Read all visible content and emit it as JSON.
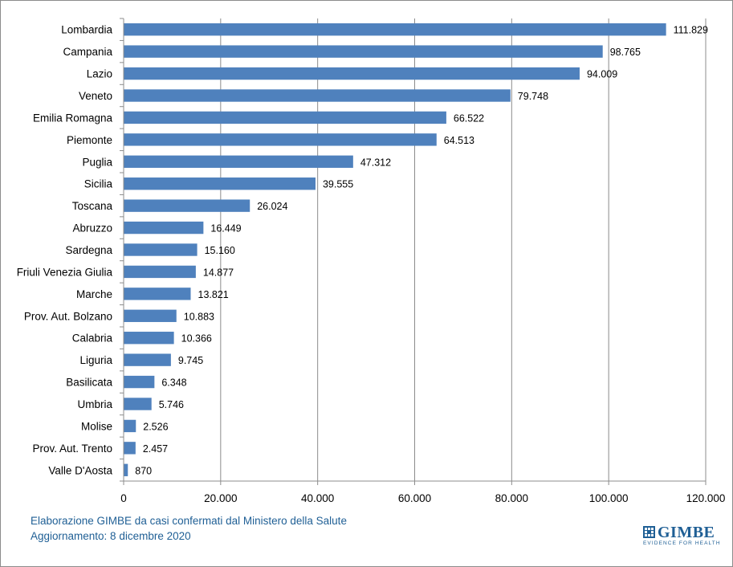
{
  "chart_data": {
    "type": "bar",
    "orientation": "horizontal",
    "categories": [
      "Lombardia",
      "Campania",
      "Lazio",
      "Veneto",
      "Emilia Romagna",
      "Piemonte",
      "Puglia",
      "Sicilia",
      "Toscana",
      "Abruzzo",
      "Sardegna",
      "Friuli Venezia Giulia",
      "Marche",
      "Prov. Aut. Bolzano",
      "Calabria",
      "Liguria",
      "Basilicata",
      "Umbria",
      "Molise",
      "Prov. Aut. Trento",
      "Valle D'Aosta"
    ],
    "values": [
      111829,
      98765,
      94009,
      79748,
      66522,
      64513,
      47312,
      39555,
      26024,
      16449,
      15160,
      14877,
      13821,
      10883,
      10366,
      9745,
      6348,
      5746,
      2526,
      2457,
      870
    ],
    "value_labels": [
      "111.829",
      "98.765",
      "94.009",
      "79.748",
      "66.522",
      "64.513",
      "47.312",
      "39.555",
      "26.024",
      "16.449",
      "15.160",
      "14.877",
      "13.821",
      "10.883",
      "10.366",
      "9.745",
      "6.348",
      "5.746",
      "2.526",
      "2.457",
      "870"
    ],
    "xlim": [
      0,
      120000
    ],
    "x_ticks": [
      0,
      20000,
      40000,
      60000,
      80000,
      100000,
      120000
    ],
    "x_tick_labels": [
      "0",
      "20.000",
      "40.000",
      "60.000",
      "80.000",
      "100.000",
      "120.000"
    ],
    "grid": "vertical",
    "bar_color": "#4f81bd",
    "title": "",
    "xlabel": "",
    "ylabel": ""
  },
  "footer": {
    "source": "Elaborazione GIMBE da casi confermati dal Ministero della Salute",
    "updated": "Aggiornamento: 8 dicembre 2020",
    "text_color": "#1f5f95"
  },
  "logo": {
    "name": "GIMBE",
    "tagline": "EVIDENCE FOR HEALTH"
  }
}
